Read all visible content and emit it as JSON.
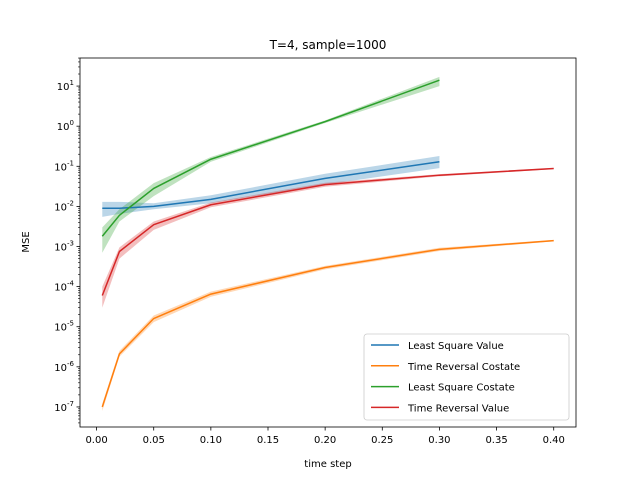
{
  "chart_data": {
    "type": "line",
    "title": "T=4, sample=1000",
    "xlabel": "time step",
    "ylabel": "MSE",
    "xlim": [
      -0.0145,
      0.4195
    ],
    "ylim_log10": [
      -7.5,
      1.7
    ],
    "yscale": "log",
    "grid": false,
    "legend_position": "lower-right",
    "x_ticks": [
      0.0,
      0.05,
      0.1,
      0.15,
      0.2,
      0.25,
      0.3,
      0.35,
      0.4
    ],
    "x_tick_labels": [
      "0.00",
      "0.05",
      "0.10",
      "0.15",
      "0.20",
      "0.25",
      "0.30",
      "0.35",
      "0.40"
    ],
    "y_ticks_exp": [
      -7,
      -6,
      -5,
      -4,
      -3,
      -2,
      -1,
      0,
      1
    ],
    "series": [
      {
        "name": "Least Square Value",
        "color": "#1f77b4",
        "x": [
          0.005,
          0.02,
          0.05,
          0.1,
          0.2,
          0.3
        ],
        "y": [
          0.009,
          0.009,
          0.01,
          0.015,
          0.05,
          0.13
        ],
        "y_low": [
          0.0055,
          0.0065,
          0.0085,
          0.012,
          0.035,
          0.09
        ],
        "y_high": [
          0.013,
          0.013,
          0.012,
          0.019,
          0.065,
          0.18
        ]
      },
      {
        "name": "Time Reversal Costate",
        "color": "#ff7f0e",
        "x": [
          0.005,
          0.02,
          0.05,
          0.1,
          0.2,
          0.3,
          0.4
        ],
        "y": [
          1e-07,
          2.1e-06,
          1.6e-05,
          6.5e-05,
          0.0003,
          0.00085,
          0.0014
        ],
        "y_low": [
          8e-08,
          1.8e-06,
          1.3e-05,
          5.6e-05,
          0.00027,
          0.00077,
          0.00134
        ],
        "y_high": [
          1.2e-07,
          2.5e-06,
          1.9e-05,
          7.5e-05,
          0.00033,
          0.00093,
          0.00146
        ]
      },
      {
        "name": "Least Square Costate",
        "color": "#2ca02c",
        "x": [
          0.005,
          0.02,
          0.05,
          0.1,
          0.2,
          0.3
        ],
        "y": [
          0.0018,
          0.006,
          0.028,
          0.15,
          1.3,
          14
        ],
        "y_low": [
          0.0007,
          0.0042,
          0.018,
          0.13,
          1.2,
          10
        ],
        "y_high": [
          0.003,
          0.0085,
          0.038,
          0.17,
          1.4,
          17
        ]
      },
      {
        "name": "Time Reversal Value",
        "color": "#d62728",
        "x": [
          0.005,
          0.02,
          0.05,
          0.1,
          0.2,
          0.3,
          0.4
        ],
        "y": [
          6e-05,
          0.00075,
          0.0035,
          0.011,
          0.035,
          0.06,
          0.088
        ],
        "y_low": [
          3e-05,
          0.0005,
          0.0026,
          0.0095,
          0.031,
          0.056,
          0.085
        ],
        "y_high": [
          0.0001,
          0.00095,
          0.0042,
          0.0125,
          0.039,
          0.064,
          0.091
        ]
      }
    ]
  }
}
